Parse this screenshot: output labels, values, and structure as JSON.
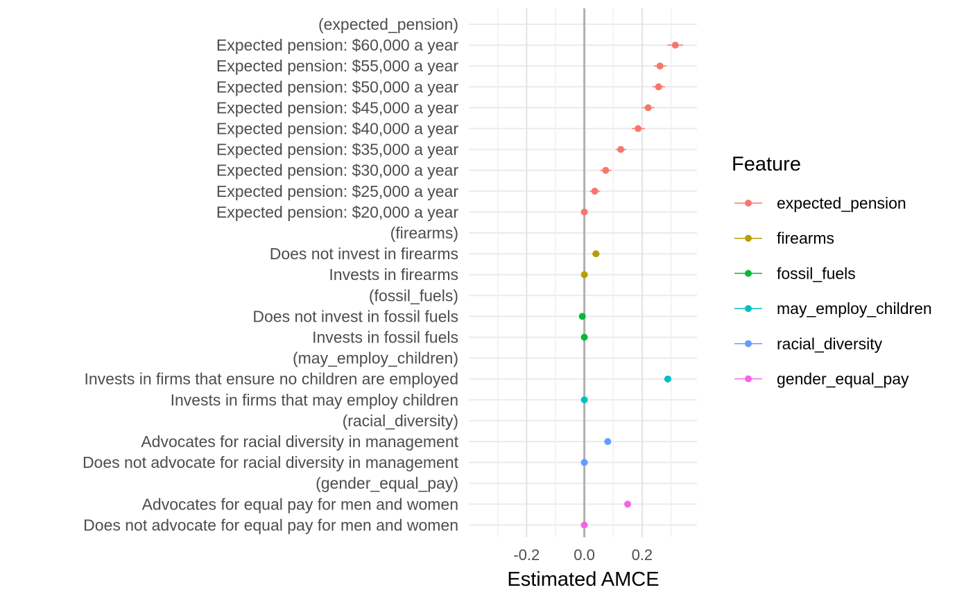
{
  "chart_data": {
    "type": "scatter",
    "xlabel": "Estimated AMCE",
    "xlim": [
      -0.4,
      0.39
    ],
    "xticks": [
      -0.2,
      0.0,
      0.2
    ],
    "xtick_labels": [
      "-0.2",
      "0.0",
      "0.2"
    ],
    "reference_line_x": 0,
    "grid": true,
    "legend": {
      "title": "Feature",
      "position": "right",
      "entries": [
        {
          "name": "expected_pension",
          "color": "#F8766D"
        },
        {
          "name": "firearms",
          "color": "#B79F00"
        },
        {
          "name": "fossil_fuels",
          "color": "#00BA38"
        },
        {
          "name": "may_employ_children",
          "color": "#00BFC4"
        },
        {
          "name": "racial_diversity",
          "color": "#619CFF"
        },
        {
          "name": "gender_equal_pay",
          "color": "#F564E3"
        }
      ]
    },
    "rows": [
      {
        "label": "(expected_pension)",
        "feature": "expected_pension",
        "estimate": null
      },
      {
        "label": "Expected pension: $60,000 a year",
        "feature": "expected_pension",
        "estimate": 0.315,
        "lower": 0.288,
        "upper": 0.342
      },
      {
        "label": "Expected pension: $55,000 a year",
        "feature": "expected_pension",
        "estimate": 0.262,
        "lower": 0.241,
        "upper": 0.284
      },
      {
        "label": "Expected pension: $50,000 a year",
        "feature": "expected_pension",
        "estimate": 0.257,
        "lower": 0.236,
        "upper": 0.279
      },
      {
        "label": "Expected pension: $45,000 a year",
        "feature": "expected_pension",
        "estimate": 0.221,
        "lower": 0.199,
        "upper": 0.243
      },
      {
        "label": "Expected pension: $40,000 a year",
        "feature": "expected_pension",
        "estimate": 0.186,
        "lower": 0.164,
        "upper": 0.209
      },
      {
        "label": "Expected pension: $35,000 a year",
        "feature": "expected_pension",
        "estimate": 0.126,
        "lower": 0.108,
        "upper": 0.145
      },
      {
        "label": "Expected pension: $30,000 a year",
        "feature": "expected_pension",
        "estimate": 0.074,
        "lower": 0.055,
        "upper": 0.093
      },
      {
        "label": "Expected pension: $25,000 a year",
        "feature": "expected_pension",
        "estimate": 0.036,
        "lower": 0.018,
        "upper": 0.055
      },
      {
        "label": "Expected pension: $20,000 a year",
        "feature": "expected_pension",
        "estimate": 0.0,
        "lower": 0.0,
        "upper": 0.0
      },
      {
        "label": "(firearms)",
        "feature": "firearms",
        "estimate": null
      },
      {
        "label": "Does not invest in firearms",
        "feature": "firearms",
        "estimate": 0.04,
        "lower": 0.027,
        "upper": 0.053
      },
      {
        "label": "Invests in firearms",
        "feature": "firearms",
        "estimate": 0.0,
        "lower": 0.0,
        "upper": 0.0
      },
      {
        "label": "(fossil_fuels)",
        "feature": "fossil_fuels",
        "estimate": null
      },
      {
        "label": "Does not invest in fossil fuels",
        "feature": "fossil_fuels",
        "estimate": -0.007,
        "lower": -0.017,
        "upper": 0.004
      },
      {
        "label": "Invests in fossil fuels",
        "feature": "fossil_fuels",
        "estimate": 0.0,
        "lower": 0.0,
        "upper": 0.0
      },
      {
        "label": "(may_employ_children)",
        "feature": "may_employ_children",
        "estimate": null
      },
      {
        "label": "Invests in firms that ensure no children are employed",
        "feature": "may_employ_children",
        "estimate": 0.289,
        "lower": 0.276,
        "upper": 0.302
      },
      {
        "label": "Invests in firms that may employ children",
        "feature": "may_employ_children",
        "estimate": 0.0,
        "lower": 0.0,
        "upper": 0.0
      },
      {
        "label": "(racial_diversity)",
        "feature": "racial_diversity",
        "estimate": null
      },
      {
        "label": "Advocates for racial diversity in management",
        "feature": "racial_diversity",
        "estimate": 0.081,
        "lower": 0.07,
        "upper": 0.092
      },
      {
        "label": "Does not advocate for racial diversity in management",
        "feature": "racial_diversity",
        "estimate": 0.0,
        "lower": 0.0,
        "upper": 0.0
      },
      {
        "label": "(gender_equal_pay)",
        "feature": "gender_equal_pay",
        "estimate": null
      },
      {
        "label": "Advocates for equal pay for men and women",
        "feature": "gender_equal_pay",
        "estimate": 0.15,
        "lower": 0.139,
        "upper": 0.161
      },
      {
        "label": "Does not advocate for equal pay for men and women",
        "feature": "gender_equal_pay",
        "estimate": 0.0,
        "lower": 0.0,
        "upper": 0.0
      }
    ]
  }
}
